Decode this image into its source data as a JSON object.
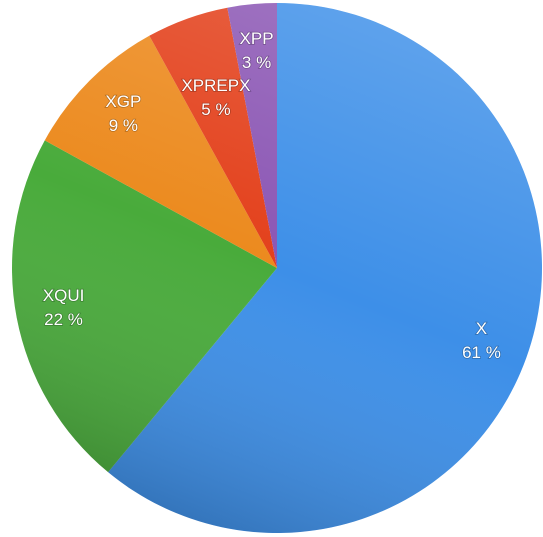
{
  "chart_data": {
    "type": "pie",
    "categories": [
      "X",
      "XQUI",
      "XGP",
      "XPREPX",
      "XPP"
    ],
    "values": [
      61,
      22,
      9,
      5,
      3
    ],
    "value_labels": [
      "61 %",
      "22 %",
      "9 %",
      "5 %",
      "3 %"
    ],
    "colors": [
      "#3d8fe8",
      "#49ab3b",
      "#ec8a1e",
      "#e3401b",
      "#8b56b4"
    ]
  }
}
